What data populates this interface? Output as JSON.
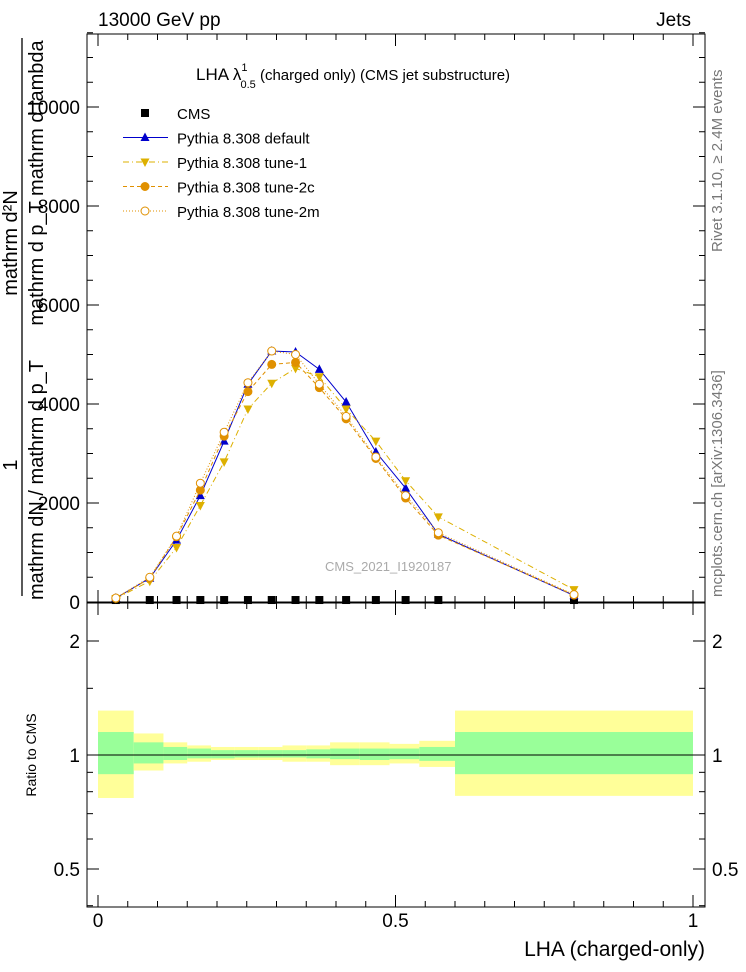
{
  "header": {
    "left": "13000 GeV pp",
    "right": "Jets"
  },
  "side_labels": {
    "rivet": "Rivet 3.1.10, ≥ 2.4M events",
    "mcplots": "mcplots.cern.ch [arXiv:1306.3436]"
  },
  "watermark": "CMS_2021_I1920187",
  "ylabel_upper": {
    "numerator": "mathrm d²N",
    "numerator_den": "mathrm d p_T mathrm d lambda",
    "prefactor": "1",
    "denominator": "mathrm dN / mathrm d p_T"
  },
  "ylabel_lower": "Ratio to CMS",
  "xlabel": "LHA (charged-only)",
  "chart_data": [
    {
      "type": "line",
      "panel": "main",
      "title": "LHA λ¹₀.₅ (charged only) (CMS jet substructure)",
      "title_parts": {
        "prefix": "LHA λ",
        "sup": "1",
        "sub": "0.5",
        "suffix": " (charged only) (CMS jet substructure)"
      },
      "x": [
        0.03,
        0.087,
        0.132,
        0.172,
        0.212,
        0.252,
        0.292,
        0.332,
        0.372,
        0.417,
        0.467,
        0.517,
        0.572,
        0.8
      ],
      "x_ticks": [
        "0",
        "0.5",
        "1"
      ],
      "y_ticks": [
        "0",
        "2000",
        "4000",
        "6000",
        "8000",
        "10000"
      ],
      "xlim": [
        -0.02,
        1.02
      ],
      "ylim": [
        0,
        11500
      ],
      "legend_position": "top-left",
      "series": [
        {
          "name": "CMS",
          "style": "data",
          "color": "#000000",
          "values": [
            40,
            40,
            40,
            40,
            40,
            40,
            40,
            40,
            40,
            40,
            40,
            40,
            40,
            40
          ]
        },
        {
          "name": "Pythia 8.308 default",
          "style": "default",
          "color": "#0000cc",
          "values": [
            80,
            480,
            1250,
            2150,
            3250,
            4400,
            5070,
            5050,
            4700,
            4040,
            3030,
            2300,
            1370,
            130
          ]
        },
        {
          "name": "Pythia 8.308 tune-1",
          "style": "tune1",
          "color": "#ddb000",
          "values": [
            70,
            420,
            1100,
            1950,
            2830,
            3900,
            4420,
            4720,
            4550,
            3900,
            3250,
            2450,
            1720,
            250
          ]
        },
        {
          "name": "Pythia 8.308 tune-2c",
          "style": "tune2c",
          "color": "#e09000",
          "values": [
            75,
            480,
            1320,
            2260,
            3350,
            4250,
            4800,
            4840,
            4330,
            3700,
            2900,
            2100,
            1350,
            140
          ]
        },
        {
          "name": "Pythia 8.308 tune-2m",
          "style": "tune2m",
          "color": "#e09000",
          "values": [
            80,
            500,
            1330,
            2400,
            3430,
            4430,
            5070,
            5000,
            4400,
            3750,
            2930,
            2150,
            1400,
            150
          ]
        }
      ]
    },
    {
      "type": "area",
      "panel": "ratio",
      "ylabel": "Ratio to CMS",
      "y_ticks": [
        "0.5",
        "1",
        "2"
      ],
      "ylim": [
        0.35,
        2.4
      ],
      "reference": 1,
      "bin_edges": [
        0,
        0.06,
        0.11,
        0.15,
        0.19,
        0.23,
        0.27,
        0.31,
        0.35,
        0.39,
        0.44,
        0.49,
        0.54,
        0.6,
        1.0
      ],
      "band_outer": {
        "color": "#ffff99",
        "lower": [
          0.77,
          0.91,
          0.95,
          0.96,
          0.97,
          0.97,
          0.97,
          0.96,
          0.96,
          0.94,
          0.94,
          0.95,
          0.93,
          0.78
        ],
        "upper": [
          1.31,
          1.14,
          1.08,
          1.06,
          1.05,
          1.05,
          1.05,
          1.06,
          1.06,
          1.08,
          1.08,
          1.07,
          1.09,
          1.31
        ]
      },
      "band_inner": {
        "color": "#99ff99",
        "lower": [
          0.89,
          0.95,
          0.97,
          0.98,
          0.98,
          0.985,
          0.985,
          0.985,
          0.98,
          0.975,
          0.97,
          0.975,
          0.965,
          0.89
        ],
        "upper": [
          1.15,
          1.08,
          1.05,
          1.04,
          1.03,
          1.03,
          1.03,
          1.03,
          1.035,
          1.04,
          1.04,
          1.04,
          1.05,
          1.15
        ]
      }
    }
  ]
}
